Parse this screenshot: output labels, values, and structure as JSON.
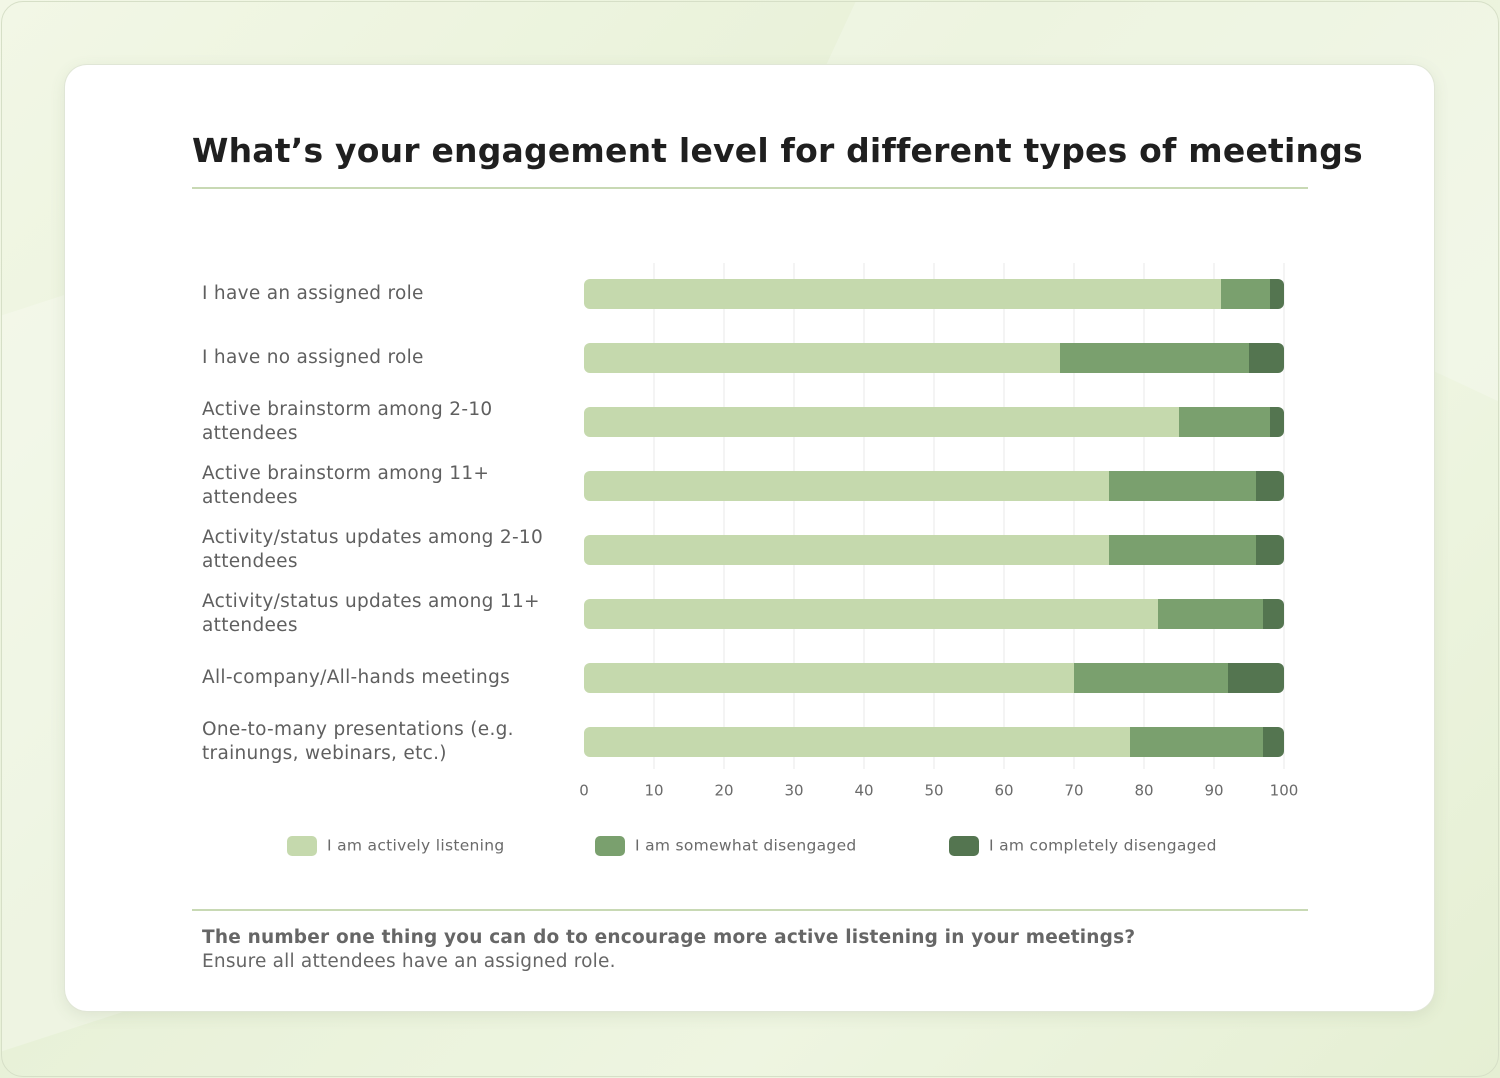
{
  "header": {
    "title": "What’s your engagement level for different types of meetings"
  },
  "colors": {
    "active": "#c5d9ad",
    "somewhat": "#7aa06e",
    "completely": "#547550",
    "grid": "#e9e9e9",
    "rule": "#c8d9b4"
  },
  "chart_data": {
    "type": "bar",
    "orientation": "horizontal",
    "stacked": true,
    "title": "What’s your engagement level for different types of meetings",
    "xlabel": "",
    "ylabel": "",
    "xlim": [
      0,
      100
    ],
    "xticks": [
      "0",
      "10",
      "20",
      "30",
      "40",
      "50",
      "60",
      "70",
      "80",
      "90",
      "100"
    ],
    "grid": true,
    "legend_position": "bottom",
    "categories": [
      [
        "I have an assigned role"
      ],
      [
        "I have no assigned role"
      ],
      [
        "Active brainstorm among 2-10",
        "attendees"
      ],
      [
        "Active brainstorm among 11+",
        "attendees"
      ],
      [
        "Activity/status updates among 2-10",
        "attendees"
      ],
      [
        "Activity/status updates among 11+",
        "attendees"
      ],
      [
        "All-company/All-hands meetings"
      ],
      [
        "One-to-many presentations (e.g.",
        "trainungs, webinars, etc.)"
      ]
    ],
    "series": [
      {
        "name": "I am actively listening",
        "color_key": "active",
        "values": [
          91,
          68,
          85,
          75,
          75,
          82,
          70,
          78
        ]
      },
      {
        "name": "I am somewhat disengaged",
        "color_key": "somewhat",
        "values": [
          7,
          27,
          13,
          21,
          21,
          15,
          22,
          19
        ]
      },
      {
        "name": "I am completely disengaged",
        "color_key": "completely",
        "values": [
          2,
          5,
          2,
          4,
          4,
          3,
          8,
          3
        ]
      }
    ]
  },
  "footer": {
    "question": "The number one thing you can do to encourage more active listening in your meetings?",
    "answer": "Ensure all attendees have an assigned role."
  }
}
